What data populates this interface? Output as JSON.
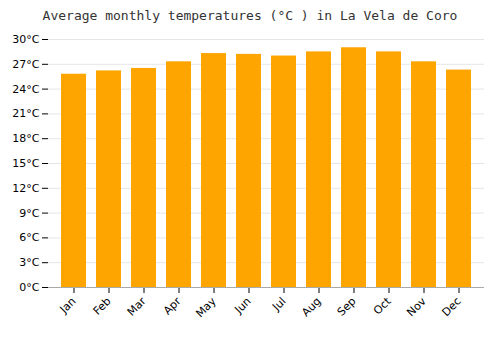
{
  "chart_data": {
    "type": "bar",
    "title": "Average monthly temperatures (°C ) in La Vela de Coro",
    "categories": [
      "Jan",
      "Feb",
      "Mar",
      "Apr",
      "May",
      "Jun",
      "Jul",
      "Aug",
      "Sep",
      "Oct",
      "Nov",
      "Dec"
    ],
    "values": [
      25.8,
      26.2,
      26.5,
      27.3,
      28.3,
      28.2,
      28.0,
      28.5,
      29.0,
      28.5,
      27.3,
      26.3
    ],
    "color": "#FFA500",
    "ylim": [
      0,
      30
    ],
    "yticks": [
      {
        "value": 0,
        "label": "0°C"
      },
      {
        "value": 3,
        "label": "3°C"
      },
      {
        "value": 6,
        "label": "6°C"
      },
      {
        "value": 9,
        "label": "9°C"
      },
      {
        "value": 12,
        "label": "12°C"
      },
      {
        "value": 15,
        "label": "15°C"
      },
      {
        "value": 18,
        "label": "18°C"
      },
      {
        "value": 21,
        "label": "21°C"
      },
      {
        "value": 24,
        "label": "24°C"
      },
      {
        "value": 27,
        "label": "27°C"
      },
      {
        "value": 30,
        "label": "30°C"
      }
    ],
    "grid": true
  }
}
